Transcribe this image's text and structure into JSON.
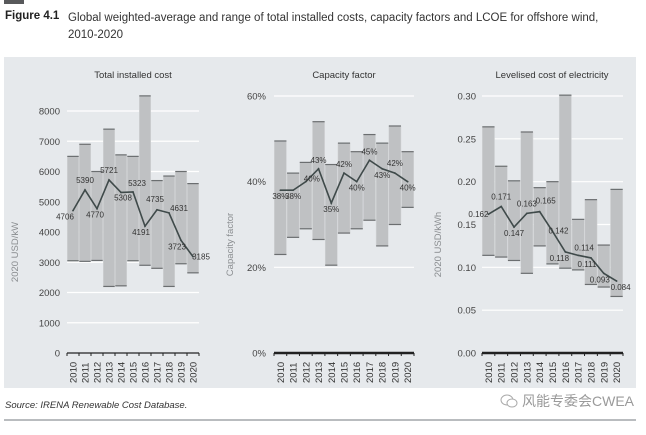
{
  "figure": {
    "label": "Figure 4.1",
    "title": "Global weighted-average and range of total installed costs, capacity factors and LCOE for offshore wind, 2010-2020",
    "source": "Source: IRENA Renewable Cost Database.",
    "watermark": "风能专委会CWEA",
    "colors": {
      "bar": "#bfc1c3",
      "bar_edge": "#6b6e70",
      "line": "#3f4a4a",
      "panel_bg": "#e6e9ec",
      "grid": "#ffffff"
    }
  },
  "chart_data": [
    {
      "type": "bar",
      "title": "Total installed cost",
      "ylabel": "2020 USD/kW",
      "xlabel": "",
      "ylim": [
        0,
        8000
      ],
      "yticks": [
        0,
        1000,
        2000,
        3000,
        4000,
        5000,
        6000,
        7000,
        8000
      ],
      "ytick_labels": [
        "0",
        "1000",
        "2000",
        "3000",
        "4000",
        "5000",
        "6000",
        "7000",
        "8000"
      ],
      "grid": true,
      "categories": [
        "2010",
        "2011",
        "2012",
        "2013",
        "2014",
        "2015",
        "2016",
        "2017",
        "2018",
        "2019",
        "2020"
      ],
      "range_high": [
        6500,
        6900,
        6000,
        7400,
        6550,
        6500,
        8500,
        5700,
        5850,
        6000,
        5600
      ],
      "range_low": [
        3050,
        3030,
        3060,
        2200,
        2220,
        3050,
        2900,
        2800,
        2200,
        2950,
        2650
      ],
      "series": [
        {
          "name": "Global weighted average",
          "values": [
            4706,
            5390,
            4770,
            5721,
            5308,
            5323,
            4191,
            4735,
            4631,
            3723,
            3185
          ],
          "labels": [
            "4706",
            "5390",
            "4770",
            "5721",
            "5308",
            "5323",
            "4191",
            "4735",
            "4631",
            "3723",
            "3185"
          ]
        }
      ]
    },
    {
      "type": "bar",
      "title": "Capacity factor",
      "ylabel": "Capacity factor",
      "xlabel": "",
      "ylim": [
        0,
        60
      ],
      "yticks": [
        0,
        20,
        40,
        60
      ],
      "ytick_labels": [
        "0%",
        "20%",
        "40%",
        "60%"
      ],
      "grid": true,
      "categories": [
        "2010",
        "2011",
        "2012",
        "2013",
        "2014",
        "2015",
        "2016",
        "2017",
        "2018",
        "2019",
        "2020"
      ],
      "range_high": [
        49.5,
        42,
        44.5,
        54,
        44,
        49,
        47,
        51,
        49,
        53,
        47
      ],
      "range_low": [
        23,
        27,
        29,
        26.5,
        20.5,
        28,
        29,
        31,
        25,
        30,
        34
      ],
      "series": [
        {
          "name": "Global weighted average",
          "values": [
            38,
            38,
            40,
            43,
            35,
            42,
            40,
            45,
            43,
            42,
            40
          ],
          "labels": [
            "38%",
            "38%",
            "40%",
            "43%",
            "35%",
            "42%",
            "40%",
            "45%",
            "43%",
            "42%",
            "40%"
          ]
        }
      ]
    },
    {
      "type": "bar",
      "title": "Levelised cost of electricity",
      "ylabel": "2020 USD/kWh",
      "xlabel": "",
      "ylim": [
        0,
        0.3
      ],
      "yticks": [
        0,
        0.05,
        0.1,
        0.15,
        0.2,
        0.25,
        0.3
      ],
      "ytick_labels": [
        "0.00",
        "0.05",
        "0.10",
        "0.15",
        "0.20",
        "0.25",
        "0.30"
      ],
      "grid": true,
      "categories": [
        "2010",
        "2011",
        "2012",
        "2013",
        "2014",
        "2015",
        "2016",
        "2017",
        "2018",
        "2019",
        "2020"
      ],
      "range_high": [
        0.264,
        0.218,
        0.201,
        0.258,
        0.193,
        0.2,
        0.301,
        0.156,
        0.179,
        0.126,
        0.191
      ],
      "range_low": [
        0.114,
        0.112,
        0.108,
        0.093,
        0.125,
        0.104,
        0.099,
        0.097,
        0.08,
        0.077,
        0.066
      ],
      "series": [
        {
          "name": "Global weighted average",
          "values": [
            0.162,
            0.171,
            0.147,
            0.163,
            0.165,
            0.142,
            0.118,
            0.114,
            0.111,
            0.093,
            0.084
          ],
          "labels": [
            "0.162",
            "0.171",
            "0.147",
            "0.163",
            "0.165",
            "0.142",
            "0.118",
            "0.114",
            "0.111",
            "0.093",
            "0.084"
          ]
        }
      ]
    }
  ]
}
